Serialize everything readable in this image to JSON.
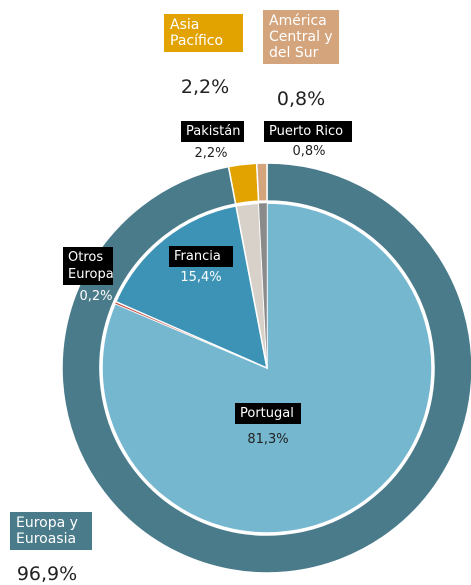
{
  "chart_data": {
    "type": "pie",
    "series": [
      {
        "categories": [
          "Europa y Euroasia",
          "Asia Pacífico",
          "América Central y del Sur"
        ],
        "values": [
          96.9,
          2.2,
          0.8
        ],
        "value_labels": [
          "96,9%",
          "2,2%",
          "0,8%"
        ],
        "colors": [
          "#4a7b8a",
          "#e2a200",
          "#d4a47c"
        ]
      },
      {
        "categories": [
          "Portugal",
          "Otros Europa",
          "Francia",
          "Pakistán",
          "Puerto Rico"
        ],
        "values": [
          81.3,
          0.2,
          15.4,
          2.2,
          0.8
        ],
        "value_labels": [
          "81,3%",
          "0,2%",
          "15,4%",
          "2,2%",
          "0,8%"
        ],
        "colors": [
          "#74b7cf",
          "#c0392b",
          "#3c93b5",
          "#d8d1ca",
          "#8a8a8a"
        ]
      }
    ]
  }
}
